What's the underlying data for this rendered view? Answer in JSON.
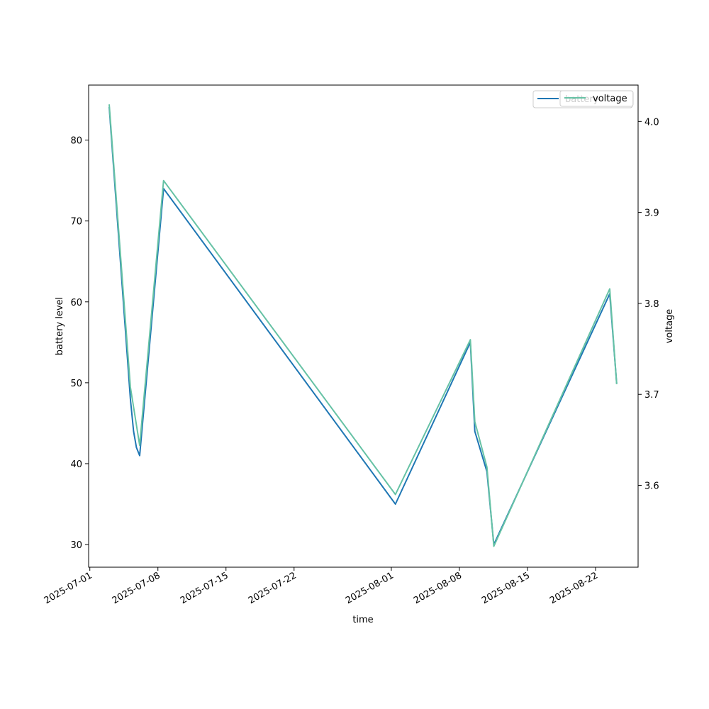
{
  "chart_data": {
    "type": "line",
    "xlabel": "time",
    "ylabel_left": "battery level",
    "ylabel_right": "voltage",
    "x_ticks": [
      "2025-07-01",
      "2025-07-08",
      "2025-07-15",
      "2025-07-22",
      "2025-08-01",
      "2025-08-08",
      "2025-08-15",
      "2025-08-22"
    ],
    "xlim": [
      "2025-06-30T21:00",
      "2025-08-26T09:00"
    ],
    "ylim_left": [
      27.2,
      86.8
    ],
    "ylim_right": [
      3.51,
      4.04
    ],
    "y_ticks_left": [
      30,
      40,
      50,
      60,
      70,
      80
    ],
    "y_ticks_right": [
      "3.6",
      "3.7",
      "3.8",
      "3.9",
      "4.0"
    ],
    "grid": false,
    "legend_position": "top-right",
    "series": [
      {
        "name": "battery",
        "axis": "left",
        "color": "#1f77b4",
        "points": [
          [
            "2025-07-03T00:00",
            84
          ],
          [
            "2025-07-05T04:00",
            48
          ],
          [
            "2025-07-05T12:00",
            44
          ],
          [
            "2025-07-05T19:00",
            42
          ],
          [
            "2025-07-06T03:00",
            41
          ],
          [
            "2025-07-08T14:00",
            74
          ],
          [
            "2025-08-01T10:00",
            35
          ],
          [
            "2025-08-09T03:00",
            55
          ],
          [
            "2025-08-09T14:00",
            44
          ],
          [
            "2025-08-10T20:00",
            39
          ],
          [
            "2025-08-11T13:00",
            30
          ],
          [
            "2025-08-23T11:00",
            61
          ],
          [
            "2025-08-24T04:00",
            50
          ]
        ]
      },
      {
        "name": "voltage",
        "axis": "right",
        "color": "#66c2a5",
        "points": [
          [
            "2025-07-03T00:00",
            4.018
          ],
          [
            "2025-07-05T04:00",
            3.708
          ],
          [
            "2025-07-06T03:00",
            3.644
          ],
          [
            "2025-07-08T14:00",
            3.935
          ],
          [
            "2025-08-01T10:00",
            3.59
          ],
          [
            "2025-08-09T03:00",
            3.76
          ],
          [
            "2025-08-09T14:00",
            3.67
          ],
          [
            "2025-08-10T20:00",
            3.62
          ],
          [
            "2025-08-11T13:00",
            3.533
          ],
          [
            "2025-08-23T11:00",
            3.816
          ],
          [
            "2025-08-24T04:00",
            3.712
          ]
        ]
      }
    ]
  }
}
